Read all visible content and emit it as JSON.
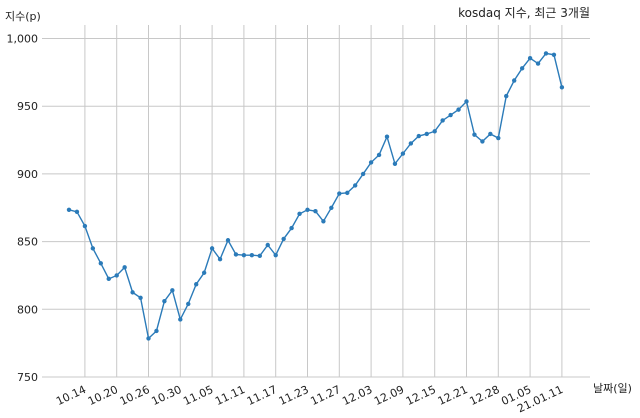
{
  "chart_data": {
    "type": "line",
    "title": "kosdaq 지수, 최근 3개월",
    "ylabel": "지수(p)",
    "xlabel": "날짜(일)",
    "ylim": [
      750,
      1010
    ],
    "yticks": [
      750,
      800,
      850,
      900,
      950,
      1000
    ],
    "ytick_labels": [
      "750",
      "800",
      "850",
      "900",
      "950",
      "1,000"
    ],
    "xtick_labels": [
      "10.14",
      "10.20",
      "10.26",
      "10.30",
      "11.05",
      "11.11",
      "11.17",
      "11.23",
      "11.27",
      "12.03",
      "12.09",
      "12.15",
      "12.21",
      "12.28",
      "01.05",
      "21.01.11"
    ],
    "xtick_indices": [
      2,
      6,
      10,
      14,
      18,
      22,
      26,
      30,
      34,
      38,
      42,
      46,
      50,
      54,
      58,
      62
    ],
    "grid": true,
    "color": "#2b7bb9",
    "series": [
      {
        "values": [
          873.5,
          872,
          861.5,
          845,
          834,
          822.5,
          825,
          831,
          812.5,
          808.5,
          778.5,
          784,
          806,
          814,
          792.5,
          804,
          818.5,
          827,
          845,
          837,
          851,
          840.5,
          840,
          840,
          839.5,
          847.5,
          840,
          852,
          860,
          870.5,
          873.5,
          872.5,
          865,
          875,
          885.5,
          886,
          891.5,
          900,
          908.5,
          914,
          927.5,
          907.5,
          915,
          922.5,
          928,
          929.5,
          931.5,
          939.5,
          943.5,
          947.5,
          953.5,
          929,
          924,
          929.5,
          926.5,
          957.5,
          969,
          978,
          985.5,
          981.5,
          989,
          988,
          964
        ]
      }
    ]
  }
}
